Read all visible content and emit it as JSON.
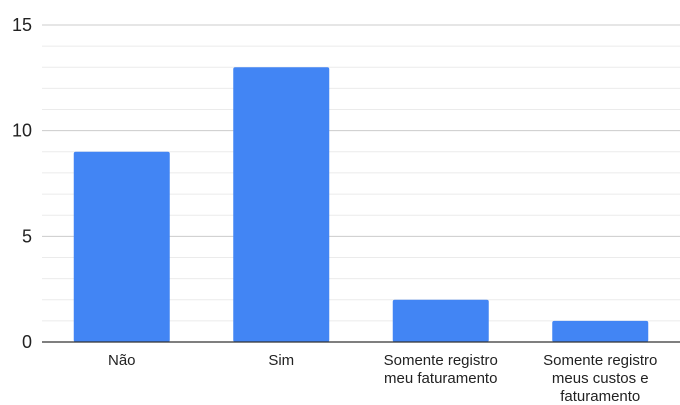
{
  "chart_data": {
    "type": "bar",
    "title": "",
    "xlabel": "",
    "ylabel": "",
    "categories": [
      [
        "Não"
      ],
      [
        "Sim"
      ],
      [
        "Somente registro",
        "meu faturamento"
      ],
      [
        "Somente registro",
        "meus custos e",
        "faturamento"
      ]
    ],
    "values": [
      9,
      13,
      2,
      1
    ],
    "ylim": [
      0,
      15
    ],
    "yticks": [
      0,
      5,
      10,
      15
    ],
    "minor_gridlines_per_major": 5,
    "grid": true,
    "legend": "none",
    "colors": {
      "bar": "#4285f4",
      "major_grid": "#cccccc",
      "minor_grid": "#ebebeb",
      "axis": "#333333",
      "text": "#222222"
    }
  }
}
